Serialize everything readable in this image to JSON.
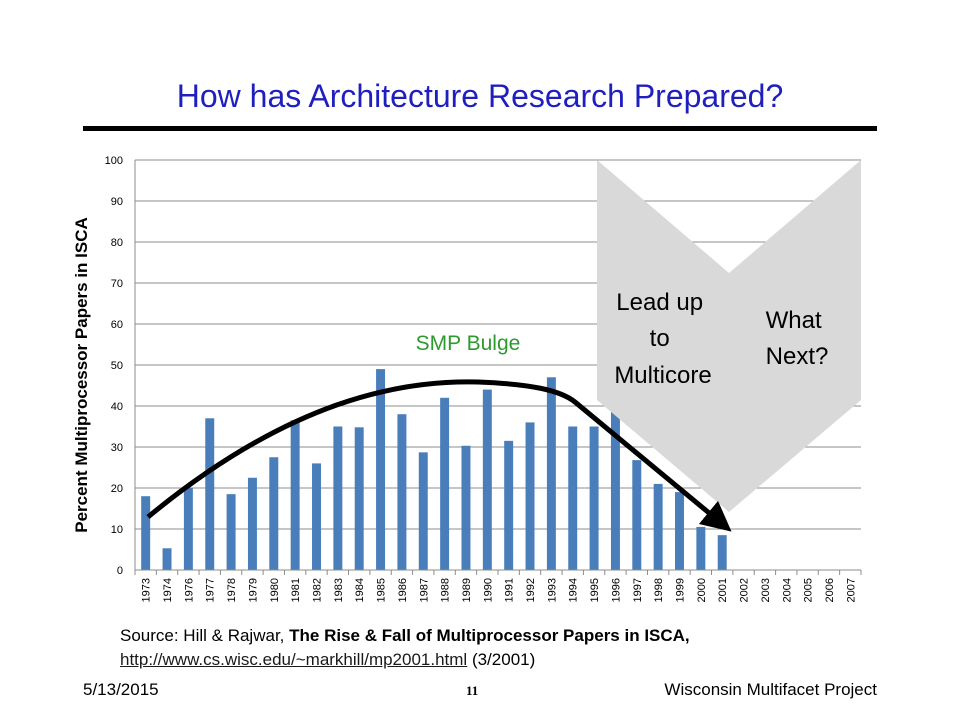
{
  "slide": {
    "title": "How has Architecture Research Prepared?",
    "source_prefix": "Source: Hill & Rajwar, ",
    "source_title": "The Rise & Fall of Multiprocessor Papers in ISCA,",
    "source_link": "http://www.cs.wisc.edu/~markhill/mp2001.html",
    "source_date": " (3/2001)",
    "footer_date": "5/13/2015",
    "footer_page": "11",
    "footer_org": "Wisconsin Multifacet Project"
  },
  "annotations": {
    "smp_bulge": "SMP Bulge",
    "chevron1": [
      "Lead up",
      "to",
      "Multicore"
    ],
    "chevron2": [
      "What",
      "Next?"
    ]
  },
  "colors": {
    "title": "#1f1fbf",
    "bar": "#4a7ebb",
    "bulge_text": "#2e9a2e",
    "chevron": "#d9d9d9",
    "arrow": "#000000"
  },
  "chart_data": {
    "type": "bar",
    "ylabel": "Percent Multiprocessor Papers in ISCA",
    "xlabel": "",
    "ylim": [
      0,
      100
    ],
    "yticks": [
      0,
      10,
      20,
      30,
      40,
      50,
      60,
      70,
      80,
      90,
      100
    ],
    "grid": true,
    "categories": [
      "1973",
      "1974",
      "1976",
      "1977",
      "1978",
      "1979",
      "1980",
      "1981",
      "1982",
      "1983",
      "1984",
      "1985",
      "1986",
      "1987",
      "1988",
      "1989",
      "1990",
      "1991",
      "1992",
      "1993",
      "1994",
      "1995",
      "1996",
      "1997",
      "1998",
      "1999",
      "2000",
      "2001",
      "2002",
      "2003",
      "2004",
      "2005",
      "2006",
      "2007"
    ],
    "values": [
      18,
      5.3,
      20,
      37,
      18.5,
      22.5,
      27.5,
      36.5,
      26,
      35,
      34.8,
      49,
      38,
      28.7,
      42,
      30.3,
      44,
      31.5,
      36,
      47,
      35,
      35,
      39,
      26.8,
      21,
      19,
      10.5,
      8.5,
      null,
      null,
      null,
      null,
      null,
      null
    ]
  }
}
